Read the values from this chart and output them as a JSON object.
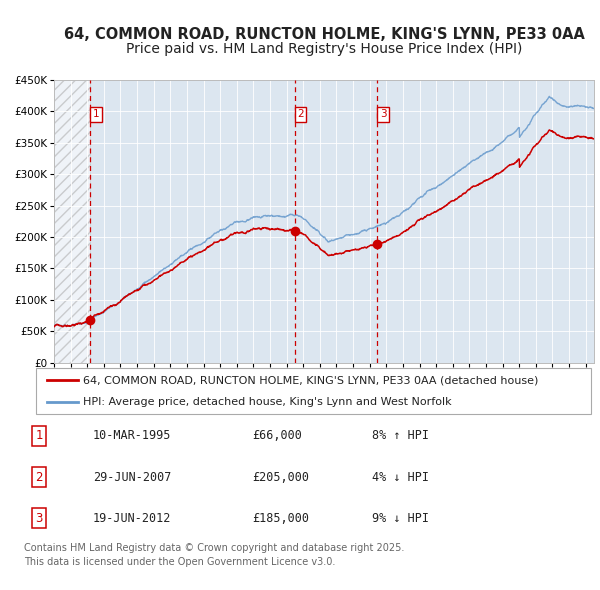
{
  "title_line1": "64, COMMON ROAD, RUNCTON HOLME, KING'S LYNN, PE33 0AA",
  "title_line2": "Price paid vs. HM Land Registry's House Price Index (HPI)",
  "legend_label_red": "64, COMMON ROAD, RUNCTON HOLME, KING'S LYNN, PE33 0AA (detached house)",
  "legend_label_blue": "HPI: Average price, detached house, King's Lynn and West Norfolk",
  "footer_line1": "Contains HM Land Registry data © Crown copyright and database right 2025.",
  "footer_line2": "This data is licensed under the Open Government Licence v3.0.",
  "transactions": [
    {
      "num": 1,
      "date": "10-MAR-1995",
      "price": 66000,
      "pct": "8%",
      "dir": "↑",
      "x": 1995.19
    },
    {
      "num": 2,
      "date": "29-JUN-2007",
      "price": 205000,
      "pct": "4%",
      "dir": "↓",
      "x": 2007.49
    },
    {
      "num": 3,
      "date": "19-JUN-2012",
      "price": 185000,
      "pct": "9%",
      "dir": "↓",
      "x": 2012.46
    }
  ],
  "red_color": "#cc0000",
  "blue_color": "#6699cc",
  "plot_bg": "#dce6f0",
  "grid_color": "#ffffff",
  "vline_color": "#cc0000",
  "ylim": [
    0,
    450000
  ],
  "yticks": [
    0,
    50000,
    100000,
    150000,
    200000,
    250000,
    300000,
    350000,
    400000,
    450000
  ],
  "xlim_start": 1993.0,
  "xlim_end": 2025.5,
  "hatch_region_end": 1995.19,
  "title_fontsize": 10.5,
  "tick_fontsize": 7.5,
  "legend_fontsize": 8,
  "table_fontsize": 8.5,
  "footer_fontsize": 7
}
